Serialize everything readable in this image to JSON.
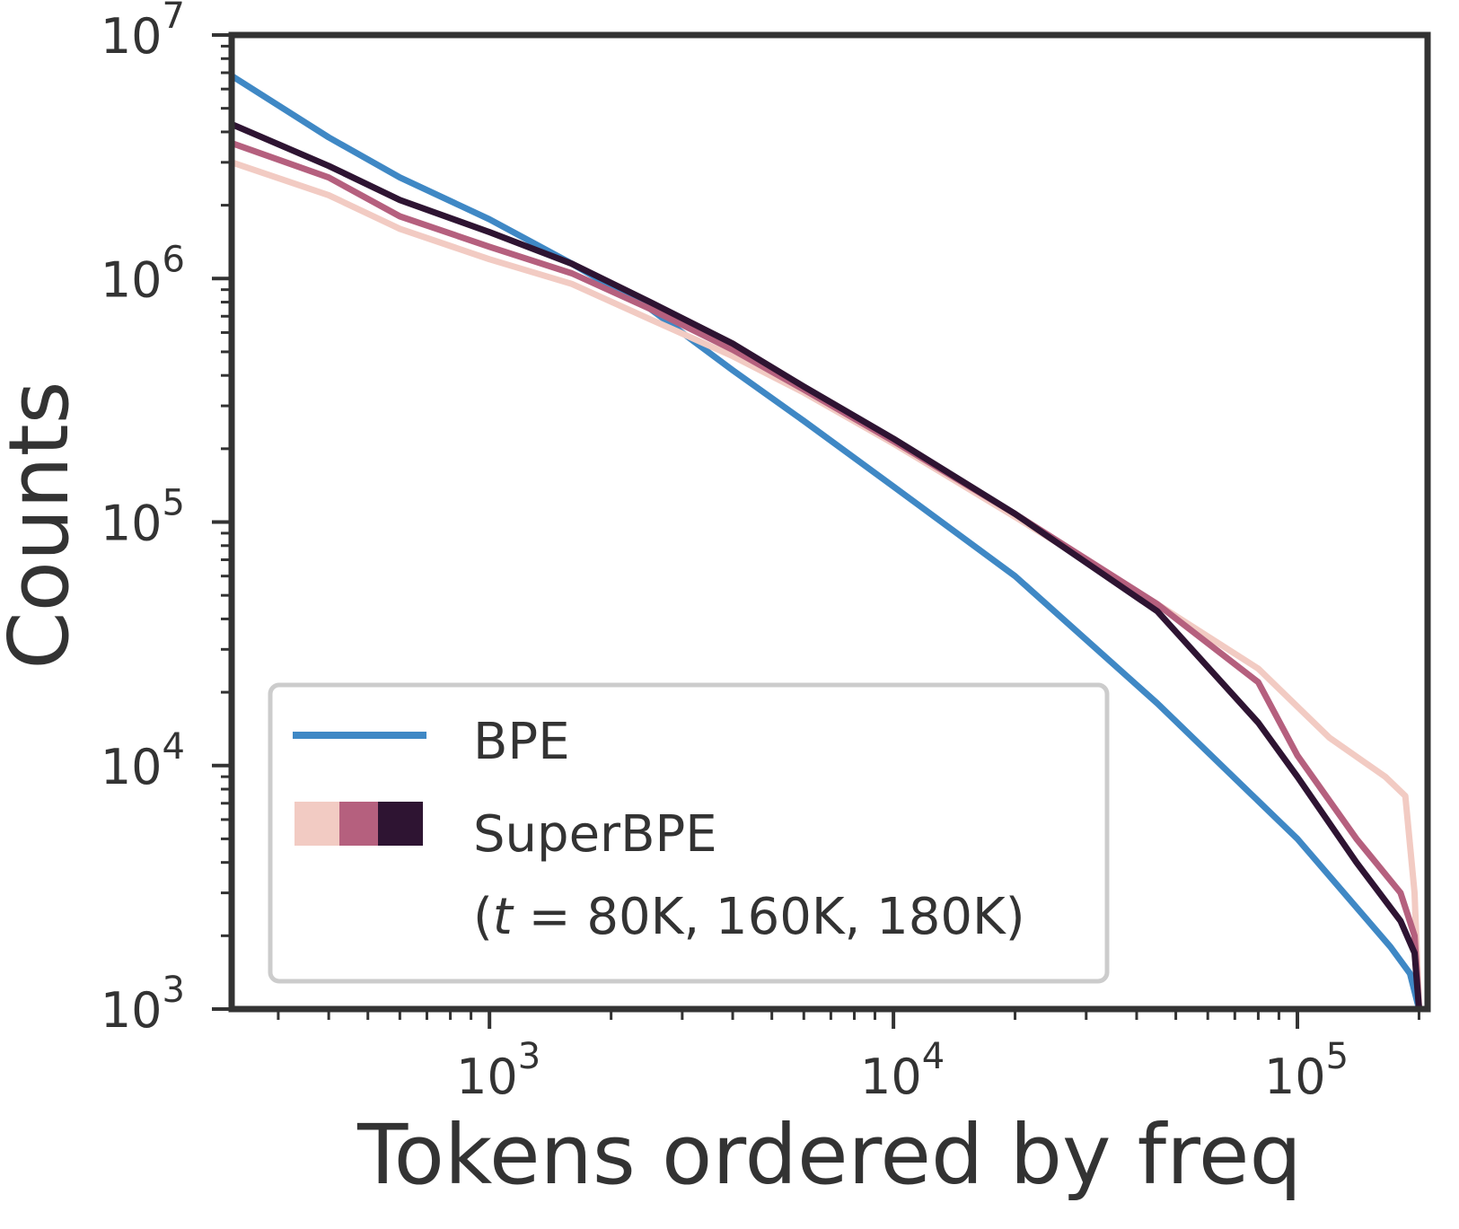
{
  "chart_data": {
    "type": "line",
    "title": "",
    "xlabel": "Tokens ordered by freq",
    "ylabel": "Counts",
    "xscale": "log",
    "yscale": "log",
    "xlim": [
      230,
      210000
    ],
    "ylim": [
      1000,
      10000000
    ],
    "grid": false,
    "legend_position": "lower-left",
    "x_ticks": [
      {
        "value": 1000,
        "base": "10",
        "exp": "3"
      },
      {
        "value": 10000,
        "base": "10",
        "exp": "4"
      },
      {
        "value": 100000,
        "base": "10",
        "exp": "5"
      }
    ],
    "y_ticks": [
      {
        "value": 1000,
        "base": "10",
        "exp": "3"
      },
      {
        "value": 10000,
        "base": "10",
        "exp": "4"
      },
      {
        "value": 100000,
        "base": "10",
        "exp": "5"
      },
      {
        "value": 1000000,
        "base": "10",
        "exp": "6"
      },
      {
        "value": 10000000,
        "base": "10",
        "exp": "7"
      }
    ],
    "legend": {
      "bpe_label": "BPE",
      "superbpe_label": "SuperBPE",
      "superbpe_sub_open": "(",
      "superbpe_sub_t": "t",
      "superbpe_sub_rest": " = 80K, 160K, 180K)"
    },
    "series": [
      {
        "name": "BPE",
        "color": "#3f88c5",
        "points": [
          [
            230,
            6800000
          ],
          [
            400,
            3800000
          ],
          [
            600,
            2600000
          ],
          [
            1000,
            1750000
          ],
          [
            1600,
            1150000
          ],
          [
            2500,
            750000
          ],
          [
            4000,
            420000
          ],
          [
            6000,
            260000
          ],
          [
            10000,
            140000
          ],
          [
            20000,
            60000
          ],
          [
            45000,
            18000
          ],
          [
            100000,
            5000
          ],
          [
            170000,
            1800
          ],
          [
            190000,
            1400
          ],
          [
            200000,
            1000
          ]
        ]
      },
      {
        "name": "t = 80K",
        "color": "#f2cbc3",
        "points": [
          [
            230,
            3000000
          ],
          [
            400,
            2200000
          ],
          [
            600,
            1600000
          ],
          [
            1000,
            1200000
          ],
          [
            1600,
            950000
          ],
          [
            2500,
            680000
          ],
          [
            4000,
            480000
          ],
          [
            6000,
            340000
          ],
          [
            10000,
            210000
          ],
          [
            20000,
            105000
          ],
          [
            45000,
            46000
          ],
          [
            80000,
            25000
          ],
          [
            120000,
            13000
          ],
          [
            165000,
            9000
          ],
          [
            185000,
            7500
          ],
          [
            195000,
            3000
          ],
          [
            200000,
            1000
          ]
        ]
      },
      {
        "name": "t = 160K",
        "color": "#b5607e",
        "points": [
          [
            230,
            3600000
          ],
          [
            400,
            2600000
          ],
          [
            600,
            1800000
          ],
          [
            1000,
            1350000
          ],
          [
            1600,
            1050000
          ],
          [
            2500,
            750000
          ],
          [
            4000,
            510000
          ],
          [
            6000,
            350000
          ],
          [
            10000,
            215000
          ],
          [
            20000,
            108000
          ],
          [
            45000,
            46000
          ],
          [
            80000,
            22000
          ],
          [
            100000,
            11000
          ],
          [
            140000,
            5000
          ],
          [
            180000,
            3000
          ],
          [
            195000,
            2000
          ],
          [
            200000,
            1000
          ]
        ]
      },
      {
        "name": "t = 180K",
        "color": "#2e1432",
        "points": [
          [
            230,
            4300000
          ],
          [
            400,
            2900000
          ],
          [
            600,
            2100000
          ],
          [
            1000,
            1550000
          ],
          [
            1600,
            1150000
          ],
          [
            2500,
            800000
          ],
          [
            4000,
            540000
          ],
          [
            6000,
            360000
          ],
          [
            10000,
            220000
          ],
          [
            20000,
            108000
          ],
          [
            45000,
            43000
          ],
          [
            80000,
            15000
          ],
          [
            100000,
            9000
          ],
          [
            140000,
            4000
          ],
          [
            180000,
            2300
          ],
          [
            195000,
            1700
          ],
          [
            200000,
            1000
          ]
        ]
      }
    ]
  }
}
